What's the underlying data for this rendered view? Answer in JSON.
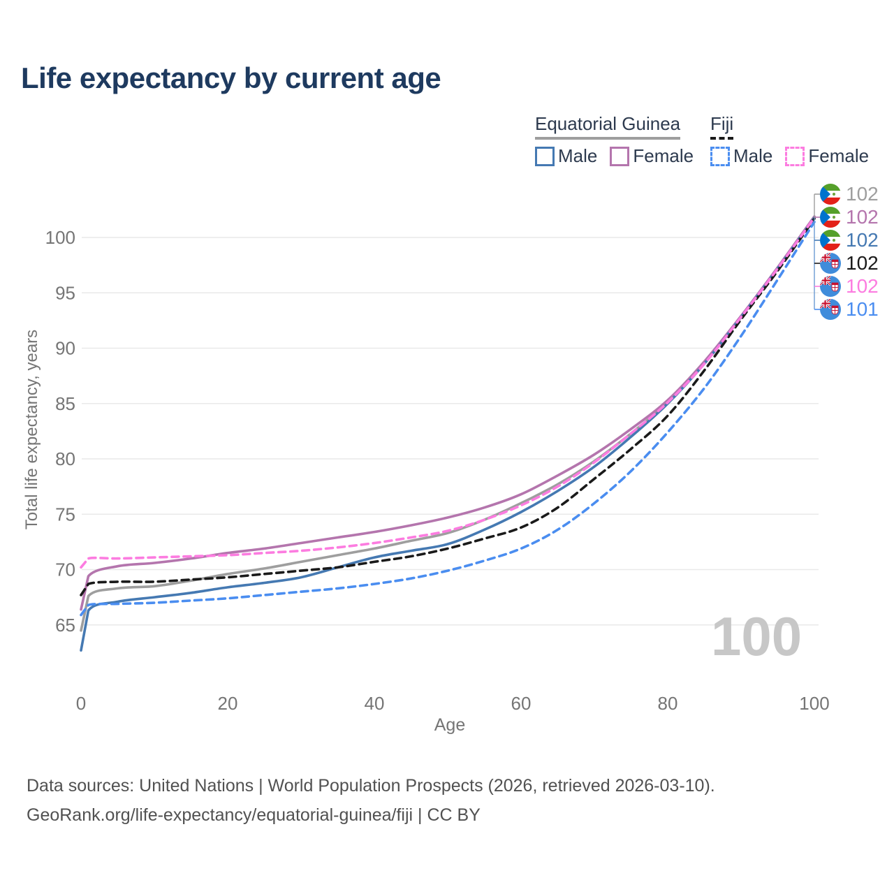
{
  "title": "Life expectancy by current age",
  "legend": {
    "groups": [
      {
        "label": "Equatorial Guinea",
        "line_color": "#9e9e9e",
        "dash": "solid",
        "items": [
          {
            "label": "Male",
            "color": "#4579b2",
            "dash": "solid"
          },
          {
            "label": "Female",
            "color": "#b475ad",
            "dash": "solid"
          }
        ]
      },
      {
        "label": "Fiji",
        "line_color": "#1a1a1a",
        "dash": "dashed",
        "items": [
          {
            "label": "Male",
            "color": "#4a8df0",
            "dash": "dashed"
          },
          {
            "label": "Female",
            "color": "#fc7ce0",
            "dash": "dashed"
          }
        ]
      }
    ]
  },
  "chart_data": {
    "type": "line",
    "title": "Life expectancy by current age",
    "xlabel": "Age",
    "ylabel": "Total life expectancy, years",
    "xlim": [
      0,
      100
    ],
    "ylim": [
      62,
      103
    ],
    "x_ticks": [
      0,
      20,
      40,
      60,
      80,
      100
    ],
    "y_ticks": [
      65,
      70,
      75,
      80,
      85,
      90,
      95,
      100
    ],
    "grid": "horizontal",
    "legend_position": "top-right",
    "x": [
      0,
      1,
      5,
      10,
      15,
      20,
      25,
      30,
      35,
      40,
      45,
      50,
      55,
      60,
      65,
      70,
      75,
      80,
      85,
      90,
      95,
      100
    ],
    "series": [
      {
        "name": "Equatorial Guinea — Total",
        "color": "#9e9e9e",
        "dash": "solid",
        "values": [
          64.5,
          67.6,
          68.3,
          68.5,
          69.0,
          69.6,
          70.1,
          70.7,
          71.3,
          71.9,
          72.6,
          73.3,
          74.5,
          76.0,
          77.7,
          79.8,
          82.3,
          85.1,
          88.6,
          92.8,
          97.2,
          101.8
        ]
      },
      {
        "name": "Equatorial Guinea — Female",
        "color": "#b475ad",
        "dash": "solid",
        "values": [
          66.4,
          69.4,
          70.3,
          70.6,
          71.0,
          71.5,
          71.9,
          72.4,
          72.9,
          73.4,
          74.0,
          74.7,
          75.6,
          76.8,
          78.5,
          80.4,
          82.7,
          85.3,
          88.8,
          92.9,
          97.3,
          101.9
        ]
      },
      {
        "name": "Equatorial Guinea — Male",
        "color": "#4579b2",
        "dash": "solid",
        "values": [
          62.7,
          66.3,
          67.1,
          67.5,
          67.9,
          68.4,
          68.8,
          69.3,
          70.2,
          71.1,
          71.7,
          72.3,
          73.6,
          75.2,
          77.1,
          79.3,
          82.0,
          85.0,
          88.6,
          92.8,
          97.2,
          101.8
        ]
      },
      {
        "name": "Fiji — Total",
        "color": "#1a1a1a",
        "dash": "dashed",
        "values": [
          67.7,
          68.7,
          68.9,
          68.9,
          69.1,
          69.3,
          69.6,
          69.9,
          70.2,
          70.7,
          71.2,
          71.9,
          72.8,
          73.8,
          75.6,
          78.2,
          80.9,
          83.9,
          88.0,
          92.6,
          97.0,
          101.7
        ]
      },
      {
        "name": "Fiji — Female",
        "color": "#fc7ce0",
        "dash": "dashed",
        "values": [
          70.2,
          71.0,
          71.0,
          71.1,
          71.2,
          71.3,
          71.5,
          71.7,
          72.0,
          72.4,
          72.9,
          73.5,
          74.5,
          75.8,
          77.5,
          79.7,
          82.3,
          85.1,
          88.6,
          92.8,
          97.2,
          101.8
        ]
      },
      {
        "name": "Fiji — Male",
        "color": "#4a8df0",
        "dash": "dashed",
        "values": [
          65.9,
          66.8,
          66.9,
          67.0,
          67.2,
          67.4,
          67.7,
          68.0,
          68.3,
          68.7,
          69.2,
          69.9,
          70.8,
          71.9,
          73.6,
          76.0,
          78.9,
          82.4,
          86.4,
          91.1,
          96.2,
          101.4
        ]
      }
    ],
    "end_labels": [
      {
        "value": "102",
        "color": "#9e9e9e",
        "flag": "equatorial-guinea"
      },
      {
        "value": "102",
        "color": "#b475ad",
        "flag": "equatorial-guinea"
      },
      {
        "value": "102",
        "color": "#4579b2",
        "flag": "equatorial-guinea"
      },
      {
        "value": "102",
        "color": "#1a1a1a",
        "flag": "fiji"
      },
      {
        "value": "102",
        "color": "#fc7ce0",
        "flag": "fiji"
      },
      {
        "value": "101",
        "color": "#4a8df0",
        "flag": "fiji"
      }
    ],
    "watermark": "100"
  },
  "footer": {
    "line1": "Data sources: United Nations | World Population Prospects (2026, retrieved 2026-03-10).",
    "line2": "GeoRank.org/life-expectancy/equatorial-guinea/fiji | CC BY"
  }
}
